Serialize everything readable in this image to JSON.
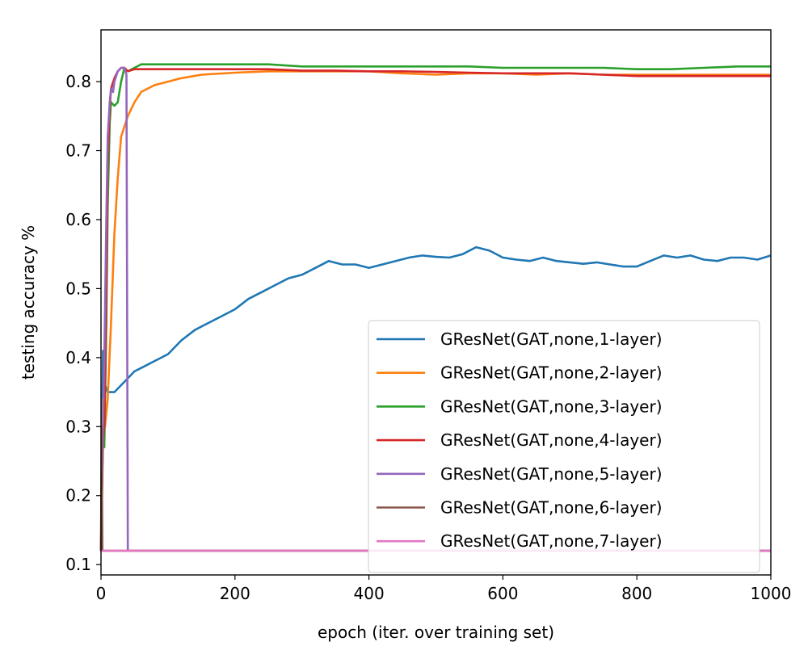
{
  "chart_data": {
    "type": "line",
    "title": "",
    "xlabel": "epoch (iter. over training set)",
    "ylabel": "testing accuracy %",
    "xlim": [
      0,
      1000
    ],
    "ylim": [
      0.085,
      0.875
    ],
    "xticks": [
      0,
      200,
      400,
      600,
      800,
      1000
    ],
    "yticks": [
      0.1,
      0.2,
      0.3,
      0.4,
      0.5,
      0.6,
      0.7,
      0.8
    ],
    "grid": false,
    "legend_position": "lower-right",
    "series": [
      {
        "name": "GResNet(GAT,none,1-layer)",
        "color": "#1f77b4",
        "x": [
          0,
          3,
          6,
          10,
          15,
          20,
          30,
          40,
          50,
          60,
          80,
          100,
          120,
          140,
          160,
          180,
          200,
          220,
          240,
          260,
          280,
          300,
          320,
          340,
          360,
          380,
          400,
          420,
          440,
          460,
          480,
          500,
          520,
          540,
          560,
          580,
          600,
          620,
          640,
          660,
          680,
          700,
          720,
          740,
          760,
          780,
          800,
          820,
          840,
          860,
          880,
          900,
          920,
          940,
          960,
          980,
          1000
        ],
        "y": [
          0.12,
          0.41,
          0.36,
          0.35,
          0.35,
          0.35,
          0.36,
          0.37,
          0.38,
          0.385,
          0.395,
          0.405,
          0.425,
          0.44,
          0.45,
          0.46,
          0.47,
          0.485,
          0.495,
          0.505,
          0.515,
          0.52,
          0.53,
          0.54,
          0.535,
          0.535,
          0.53,
          0.535,
          0.54,
          0.545,
          0.548,
          0.546,
          0.545,
          0.55,
          0.56,
          0.555,
          0.545,
          0.542,
          0.54,
          0.545,
          0.54,
          0.538,
          0.536,
          0.538,
          0.535,
          0.532,
          0.532,
          0.54,
          0.548,
          0.545,
          0.548,
          0.542,
          0.54,
          0.545,
          0.545,
          0.542,
          0.548
        ]
      },
      {
        "name": "GResNet(GAT,none,2-layer)",
        "color": "#ff7f0e",
        "x": [
          0,
          3,
          6,
          10,
          15,
          20,
          25,
          30,
          35,
          40,
          50,
          60,
          70,
          80,
          100,
          120,
          150,
          200,
          250,
          300,
          350,
          400,
          450,
          500,
          550,
          600,
          650,
          700,
          750,
          800,
          850,
          900,
          950,
          1000
        ],
        "y": [
          0.12,
          0.34,
          0.3,
          0.34,
          0.45,
          0.58,
          0.66,
          0.72,
          0.735,
          0.75,
          0.77,
          0.785,
          0.79,
          0.795,
          0.8,
          0.805,
          0.81,
          0.813,
          0.815,
          0.815,
          0.815,
          0.815,
          0.812,
          0.81,
          0.812,
          0.812,
          0.81,
          0.812,
          0.81,
          0.81,
          0.81,
          0.81,
          0.81,
          0.81
        ]
      },
      {
        "name": "GResNet(GAT,none,3-layer)",
        "color": "#2ca02c",
        "x": [
          0,
          3,
          5,
          8,
          10,
          13,
          15,
          20,
          25,
          30,
          35,
          40,
          50,
          60,
          80,
          100,
          150,
          200,
          250,
          300,
          350,
          400,
          450,
          500,
          550,
          600,
          650,
          700,
          750,
          800,
          850,
          900,
          950,
          1000
        ],
        "y": [
          0.12,
          0.3,
          0.27,
          0.45,
          0.62,
          0.74,
          0.77,
          0.765,
          0.77,
          0.8,
          0.82,
          0.815,
          0.82,
          0.825,
          0.825,
          0.825,
          0.825,
          0.825,
          0.825,
          0.822,
          0.822,
          0.822,
          0.822,
          0.822,
          0.822,
          0.82,
          0.82,
          0.82,
          0.82,
          0.818,
          0.818,
          0.82,
          0.822,
          0.822
        ]
      },
      {
        "name": "GResNet(GAT,none,4-layer)",
        "color": "#d62728",
        "x": [
          0,
          3,
          5,
          8,
          10,
          13,
          15,
          20,
          25,
          30,
          35,
          40,
          50,
          60,
          80,
          100,
          150,
          200,
          250,
          300,
          350,
          400,
          450,
          500,
          550,
          600,
          650,
          700,
          750,
          800,
          850,
          900,
          950,
          1000
        ],
        "y": [
          0.12,
          0.28,
          0.3,
          0.5,
          0.68,
          0.76,
          0.79,
          0.805,
          0.815,
          0.82,
          0.82,
          0.815,
          0.818,
          0.818,
          0.818,
          0.818,
          0.818,
          0.818,
          0.818,
          0.816,
          0.816,
          0.815,
          0.815,
          0.814,
          0.813,
          0.812,
          0.812,
          0.812,
          0.81,
          0.808,
          0.808,
          0.808,
          0.808,
          0.808
        ]
      },
      {
        "name": "GResNet(GAT,none,5-layer)",
        "color": "#9467bd",
        "x": [
          0,
          3,
          5,
          8,
          10,
          13,
          15,
          18,
          20,
          25,
          30,
          35,
          38,
          40,
          1000
        ],
        "y": [
          0.12,
          0.3,
          0.4,
          0.6,
          0.72,
          0.77,
          0.79,
          0.785,
          0.8,
          0.815,
          0.82,
          0.82,
          0.81,
          0.12,
          0.12
        ]
      },
      {
        "name": "GResNet(GAT,none,6-layer)",
        "color": "#8c564b",
        "x": [
          0,
          1,
          2,
          3,
          4,
          1000
        ],
        "y": [
          0.12,
          0.3,
          0.12,
          0.12,
          0.12,
          0.12
        ]
      },
      {
        "name": "GResNet(GAT,none,7-layer)",
        "color": "#e377c2",
        "x": [
          0,
          1000
        ],
        "y": [
          0.12,
          0.12
        ]
      }
    ]
  }
}
